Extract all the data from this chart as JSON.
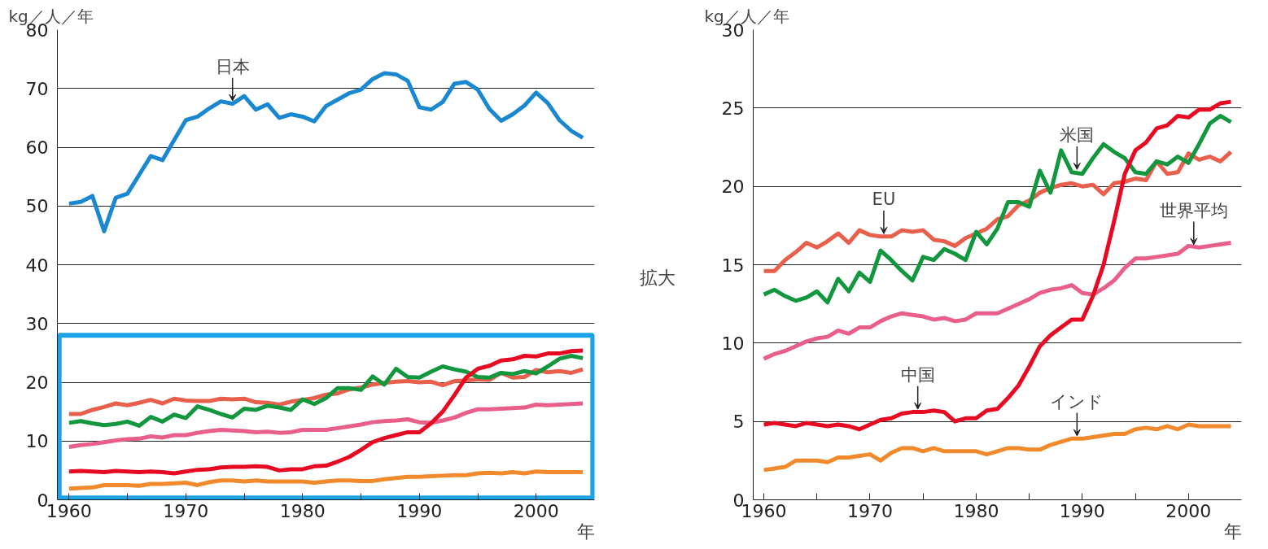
{
  "chart_data": [
    {
      "type": "line",
      "ylabel": "kg／人／年",
      "xlabel": "年",
      "x": [
        1960,
        1961,
        1962,
        1963,
        1964,
        1965,
        1966,
        1967,
        1968,
        1969,
        1970,
        1971,
        1972,
        1973,
        1974,
        1975,
        1976,
        1977,
        1978,
        1979,
        1980,
        1981,
        1982,
        1983,
        1984,
        1985,
        1986,
        1987,
        1988,
        1989,
        1990,
        1991,
        1992,
        1993,
        1994,
        1995,
        1996,
        1997,
        1998,
        1999,
        2000,
        2001,
        2002,
        2003,
        2004
      ],
      "xlim": [
        1959,
        2005
      ],
      "xticks": [
        1960,
        {
          "value": 1965,
          "label": null
        },
        1970,
        {
          "value": 1975,
          "label": null
        },
        1980,
        {
          "value": 1985,
          "label": null
        },
        1990,
        {
          "value": 1995,
          "label": null
        },
        2000
      ],
      "ylim": [
        0,
        80
      ],
      "yticks": [
        0,
        10,
        20,
        30,
        40,
        50,
        60,
        70,
        80
      ],
      "grid": "y",
      "series": [
        {
          "color": "#1a88d0",
          "values": [
            50.4,
            50.7,
            51.7,
            45.7,
            51.4,
            52.1,
            55.3,
            58.5,
            57.8,
            61.2,
            64.6,
            65.2,
            66.6,
            67.8,
            67.4,
            68.7,
            66.4,
            67.3,
            65.0,
            65.6,
            65.2,
            64.4,
            67.0,
            68.1,
            69.2,
            69.8,
            71.6,
            72.6,
            72.4,
            71.3,
            66.8,
            66.4,
            67.7,
            70.8,
            71.1,
            69.8,
            66.5,
            64.5,
            65.6,
            67.1,
            69.3,
            67.5,
            64.6,
            62.8,
            61.6
          ]
        },
        {
          "color": "#e8604c",
          "values": [
            14.6,
            14.6,
            15.3,
            15.8,
            16.4,
            16.1,
            16.5,
            17.0,
            16.4,
            17.2,
            16.9,
            16.8,
            16.8,
            17.2,
            17.1,
            17.2,
            16.6,
            16.5,
            16.2,
            16.7,
            17.0,
            17.3,
            17.9,
            18.1,
            18.8,
            19.1,
            19.6,
            19.9,
            20.1,
            20.2,
            20.0,
            20.1,
            19.5,
            20.2,
            20.3,
            20.5,
            20.4,
            21.6,
            20.8,
            20.9,
            22.1,
            21.7,
            21.9,
            21.6,
            22.2
          ]
        },
        {
          "color": "#12973f",
          "values": [
            13.1,
            13.4,
            13.0,
            12.7,
            12.9,
            13.3,
            12.6,
            14.1,
            13.3,
            14.5,
            13.9,
            15.9,
            15.3,
            14.6,
            14.0,
            15.5,
            15.3,
            16.0,
            15.7,
            15.3,
            17.1,
            16.3,
            17.3,
            19.0,
            19.0,
            18.7,
            21.0,
            19.6,
            22.3,
            20.9,
            20.8,
            21.8,
            22.7,
            22.2,
            21.8,
            20.9,
            20.8,
            21.6,
            21.4,
            21.9,
            21.5,
            22.7,
            24.0,
            24.5,
            24.1
          ]
        },
        {
          "color": "#e8608a",
          "values": [
            9.0,
            9.3,
            9.5,
            9.8,
            10.1,
            10.3,
            10.4,
            10.8,
            10.6,
            11.0,
            11.0,
            11.4,
            11.7,
            11.9,
            11.8,
            11.7,
            11.5,
            11.6,
            11.4,
            11.5,
            11.9,
            11.9,
            11.9,
            12.2,
            12.5,
            12.8,
            13.2,
            13.4,
            13.5,
            13.7,
            13.2,
            13.1,
            13.5,
            14.0,
            14.8,
            15.4,
            15.4,
            15.5,
            15.6,
            15.7,
            16.2,
            16.1,
            16.2,
            16.3,
            16.4
          ]
        },
        {
          "color": "#e60b22",
          "values": [
            4.8,
            4.9,
            4.8,
            4.7,
            4.9,
            4.8,
            4.7,
            4.8,
            4.7,
            4.5,
            4.8,
            5.1,
            5.2,
            5.5,
            5.6,
            5.6,
            5.7,
            5.6,
            5.0,
            5.2,
            5.2,
            5.7,
            5.8,
            6.5,
            7.3,
            8.5,
            9.8,
            10.5,
            11.0,
            11.5,
            11.5,
            13.0,
            15.0,
            17.8,
            20.8,
            22.3,
            22.8,
            23.7,
            23.9,
            24.5,
            24.4,
            24.9,
            24.9,
            25.3,
            25.4
          ]
        },
        {
          "color": "#f08a2c",
          "values": [
            1.9,
            2.0,
            2.1,
            2.5,
            2.5,
            2.5,
            2.4,
            2.7,
            2.7,
            2.8,
            2.9,
            2.5,
            3.0,
            3.3,
            3.3,
            3.1,
            3.3,
            3.1,
            3.1,
            3.1,
            3.1,
            2.9,
            3.1,
            3.3,
            3.3,
            3.2,
            3.2,
            3.5,
            3.7,
            3.9,
            3.9,
            4.0,
            4.1,
            4.2,
            4.2,
            4.5,
            4.6,
            4.5,
            4.7,
            4.5,
            4.8,
            4.7,
            4.7,
            4.7,
            4.7
          ]
        }
      ],
      "annotations": [
        {
          "text": "日本",
          "x": 1974,
          "y": 67.4
        },
        "拡大"
      ]
    },
    {
      "type": "line",
      "ylabel": "kg／人／年",
      "xlabel": "年",
      "x": [
        1960,
        1961,
        1962,
        1963,
        1964,
        1965,
        1966,
        1967,
        1968,
        1969,
        1970,
        1971,
        1972,
        1973,
        1974,
        1975,
        1976,
        1977,
        1978,
        1979,
        1980,
        1981,
        1982,
        1983,
        1984,
        1985,
        1986,
        1987,
        1988,
        1989,
        1990,
        1991,
        1992,
        1993,
        1994,
        1995,
        1996,
        1997,
        1998,
        1999,
        2000,
        2001,
        2002,
        2003,
        2004
      ],
      "xlim": [
        1959,
        2005
      ],
      "xticks": [
        1960,
        {
          "value": 1965,
          "label": null
        },
        1970,
        {
          "value": 1975,
          "label": null
        },
        1980,
        {
          "value": 1985,
          "label": null
        },
        1990,
        {
          "value": 1995,
          "label": null
        },
        2000
      ],
      "ylim": [
        0,
        30
      ],
      "yticks": [
        0,
        5,
        10,
        15,
        20,
        25,
        30
      ],
      "grid": "y",
      "series": [
        {
          "color": "#e8604c",
          "values": [
            14.6,
            14.6,
            15.3,
            15.8,
            16.4,
            16.1,
            16.5,
            17.0,
            16.4,
            17.2,
            16.9,
            16.8,
            16.8,
            17.2,
            17.1,
            17.2,
            16.6,
            16.5,
            16.2,
            16.7,
            17.0,
            17.3,
            17.9,
            18.1,
            18.8,
            19.1,
            19.6,
            19.9,
            20.1,
            20.2,
            20.0,
            20.1,
            19.5,
            20.2,
            20.3,
            20.5,
            20.4,
            21.6,
            20.8,
            20.9,
            22.1,
            21.7,
            21.9,
            21.6,
            22.2
          ]
        },
        {
          "color": "#12973f",
          "values": [
            13.1,
            13.4,
            13.0,
            12.7,
            12.9,
            13.3,
            12.6,
            14.1,
            13.3,
            14.5,
            13.9,
            15.9,
            15.3,
            14.6,
            14.0,
            15.5,
            15.3,
            16.0,
            15.7,
            15.3,
            17.1,
            16.3,
            17.3,
            19.0,
            19.0,
            18.7,
            21.0,
            19.6,
            22.3,
            20.9,
            20.8,
            21.8,
            22.7,
            22.2,
            21.8,
            20.9,
            20.8,
            21.6,
            21.4,
            21.9,
            21.5,
            22.7,
            24.0,
            24.5,
            24.1
          ]
        },
        {
          "color": "#e8608a",
          "values": [
            9.0,
            9.3,
            9.5,
            9.8,
            10.1,
            10.3,
            10.4,
            10.8,
            10.6,
            11.0,
            11.0,
            11.4,
            11.7,
            11.9,
            11.8,
            11.7,
            11.5,
            11.6,
            11.4,
            11.5,
            11.9,
            11.9,
            11.9,
            12.2,
            12.5,
            12.8,
            13.2,
            13.4,
            13.5,
            13.7,
            13.2,
            13.1,
            13.5,
            14.0,
            14.8,
            15.4,
            15.4,
            15.5,
            15.6,
            15.7,
            16.2,
            16.1,
            16.2,
            16.3,
            16.4
          ]
        },
        {
          "color": "#e60b22",
          "values": [
            4.8,
            4.9,
            4.8,
            4.7,
            4.9,
            4.8,
            4.7,
            4.8,
            4.7,
            4.5,
            4.8,
            5.1,
            5.2,
            5.5,
            5.6,
            5.6,
            5.7,
            5.6,
            5.0,
            5.2,
            5.2,
            5.7,
            5.8,
            6.5,
            7.3,
            8.5,
            9.8,
            10.5,
            11.0,
            11.5,
            11.5,
            13.0,
            15.0,
            17.8,
            20.8,
            22.3,
            22.8,
            23.7,
            23.9,
            24.5,
            24.4,
            24.9,
            24.9,
            25.3,
            25.4
          ]
        },
        {
          "color": "#f08a2c",
          "values": [
            1.9,
            2.0,
            2.1,
            2.5,
            2.5,
            2.5,
            2.4,
            2.7,
            2.7,
            2.8,
            2.9,
            2.5,
            3.0,
            3.3,
            3.3,
            3.1,
            3.3,
            3.1,
            3.1,
            3.1,
            3.1,
            2.9,
            3.1,
            3.3,
            3.3,
            3.2,
            3.2,
            3.5,
            3.7,
            3.9,
            3.9,
            4.0,
            4.1,
            4.2,
            4.2,
            4.5,
            4.6,
            4.5,
            4.7,
            4.5,
            4.8,
            4.7,
            4.7,
            4.7,
            4.7
          ]
        }
      ],
      "annotations": [
        {
          "text": "EU",
          "x": 1971.3,
          "y": 16.8
        },
        {
          "text": "米国",
          "x": 1989.5,
          "y": 20.9
        },
        {
          "text": "世界平均",
          "x": 2000.5,
          "y": 16.1
        },
        {
          "text": "中国",
          "x": 1974.5,
          "y": 5.6
        },
        {
          "text": "インド",
          "x": 1989.5,
          "y": 3.9
        }
      ]
    }
  ]
}
